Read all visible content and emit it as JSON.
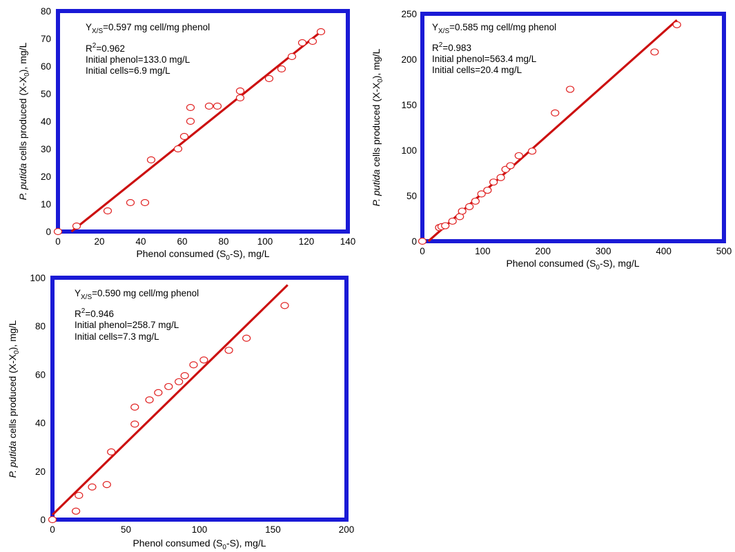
{
  "chart_data": [
    {
      "type": "scatter",
      "xlim": [
        0,
        140
      ],
      "ylim": [
        0,
        80
      ],
      "xticks": [
        "0",
        "20",
        "40",
        "60",
        "80",
        "100",
        "120",
        "140"
      ],
      "yticks": [
        "0",
        "10",
        "20",
        "30",
        "40",
        "50",
        "60",
        "70",
        "80"
      ],
      "xlabel": {
        "main": "Phenol consumed (S",
        "sub": "0",
        "rest": "-S), mg/L"
      },
      "ylabel": {
        "italic": "P. putida",
        "main": " cells produced (X-X",
        "sub": "0",
        "rest": "), mg/L"
      },
      "annotations": {
        "yield": {
          "pre": "Y",
          "sub": "X/S",
          "post": "=0.597 mg cell/mg phenol"
        },
        "r2": {
          "pre": "R",
          "sup": "2",
          "post": "=0.962"
        },
        "phenol": "Initial phenol=133.0 mg/L",
        "cells": "Initial cells=6.9 mg/L"
      },
      "points": {
        "x": [
          0,
          9,
          24,
          35,
          42,
          45,
          58,
          61,
          64,
          64,
          73,
          77,
          88,
          88,
          102,
          108,
          113,
          118,
          123,
          127
        ],
        "y": [
          0,
          2,
          7.5,
          10.5,
          10.5,
          26,
          30,
          34.5,
          40,
          45,
          45.5,
          45.5,
          48.5,
          51,
          55.5,
          59,
          63.5,
          68.5,
          69,
          72.5
        ]
      },
      "fit": {
        "x": [
          6.5,
          127
        ],
        "y": [
          0,
          72.5
        ]
      },
      "marker_color": "#e02020",
      "line_color": "#cc1111",
      "frame_color": "#1a1ad6"
    },
    {
      "type": "scatter",
      "xlim": [
        0,
        500
      ],
      "ylim": [
        0,
        250
      ],
      "xticks": [
        "0",
        "100",
        "200",
        "300",
        "400",
        "500"
      ],
      "yticks": [
        "0",
        "50",
        "100",
        "150",
        "200",
        "250"
      ],
      "xlabel": {
        "main": "Phenol consumed (S",
        "sub": "0",
        "rest": "-S), mg/L"
      },
      "ylabel": {
        "italic": "P. putida",
        "main": " cells produced (X-X",
        "sub": "0",
        "rest": "), mg/L"
      },
      "annotations": {
        "yield": {
          "pre": "Y",
          "sub": "X/S",
          "post": "=0.585 mg cell/mg phenol"
        },
        "r2": {
          "pre": "R",
          "sup": "2",
          "post": "=0.983"
        },
        "phenol": "Initial phenol=563.4 mg/L",
        "cells": "Initial cells=20.4 mg/L"
      },
      "points": {
        "x": [
          0,
          28,
          32,
          38,
          50,
          62,
          66,
          78,
          88,
          98,
          108,
          118,
          130,
          138,
          146,
          160,
          182,
          220,
          245,
          385,
          422
        ],
        "y": [
          0,
          15,
          16,
          17,
          22,
          27,
          33,
          38,
          44,
          52,
          56,
          65,
          70,
          79,
          83,
          94,
          99,
          141,
          167,
          208,
          238
        ]
      },
      "fit": {
        "x": [
          10,
          422
        ],
        "y": [
          0,
          243
        ]
      },
      "marker_color": "#e02020",
      "line_color": "#cc1111",
      "frame_color": "#1a1ad6"
    },
    {
      "type": "scatter",
      "xlim": [
        0,
        200
      ],
      "ylim": [
        0,
        100
      ],
      "xticks": [
        "0",
        "50",
        "100",
        "150",
        "200"
      ],
      "yticks": [
        "0",
        "20",
        "40",
        "60",
        "80",
        "100"
      ],
      "xlabel": {
        "main": "Phenol consumed (S",
        "sub": "0",
        "rest": "-S), mg/L"
      },
      "ylabel": {
        "italic": "P. putida",
        "main": " cells produced (X-X",
        "sub": "0",
        "rest": "), mg/L"
      },
      "annotations": {
        "yield": {
          "pre": "Y",
          "sub": "X/S",
          "post": "=0.590 mg cell/mg phenol"
        },
        "r2": {
          "pre": "R",
          "sup": "2",
          "post": "=0.946"
        },
        "phenol": "Initial phenol=258.7 mg/L",
        "cells": "Initial cells=7.3 mg/L"
      },
      "points": {
        "x": [
          0,
          16,
          18,
          27,
          37,
          40,
          56,
          56,
          66,
          72,
          79,
          86,
          90,
          96,
          103,
          120,
          132,
          158
        ],
        "y": [
          0,
          3.5,
          10,
          13.5,
          14.5,
          28,
          39.5,
          46.5,
          49.5,
          52.5,
          55,
          57,
          59.5,
          64,
          66,
          70,
          75,
          88.5
        ]
      },
      "fit": {
        "x": [
          0,
          160
        ],
        "y": [
          2,
          97
        ]
      },
      "marker_color": "#e02020",
      "line_color": "#cc1111",
      "frame_color": "#1a1ad6"
    }
  ]
}
